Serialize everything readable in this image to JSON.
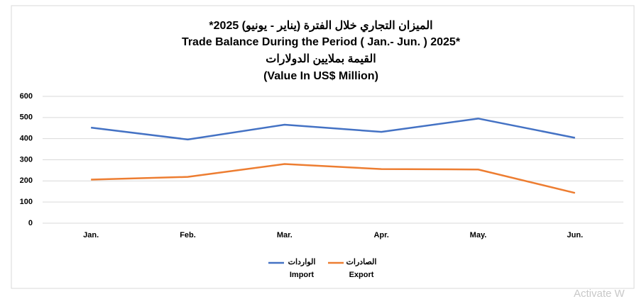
{
  "chart_data": {
    "type": "line",
    "title": "الميزان التجاري خلال الفترة (يناير - يونيو) 2025*",
    "subtitle": "Trade Balance During the Period ( Jan.- Jun. ) 2025*",
    "unit_label": "القيمة بملايين الدولارات",
    "unit_label_en": "(Value In US$ Million)",
    "categories": [
      "Jan.",
      "Feb.",
      "Mar.",
      "Apr.",
      "May.",
      "Jun."
    ],
    "series": [
      {
        "name": "Import",
        "name_ar": "الواردات",
        "color": "#4472c4",
        "values": [
          452,
          396,
          466,
          432,
          495,
          404
        ]
      },
      {
        "name": "Export",
        "name_ar": "الصادرات",
        "color": "#ed7d31",
        "values": [
          206,
          219,
          280,
          256,
          254,
          143
        ]
      }
    ],
    "ylim": [
      0,
      600
    ],
    "yticks": [
      0,
      100,
      200,
      300,
      400,
      500,
      600
    ],
    "grid": true,
    "legend": "bottom",
    "watermark": "Activate W"
  }
}
